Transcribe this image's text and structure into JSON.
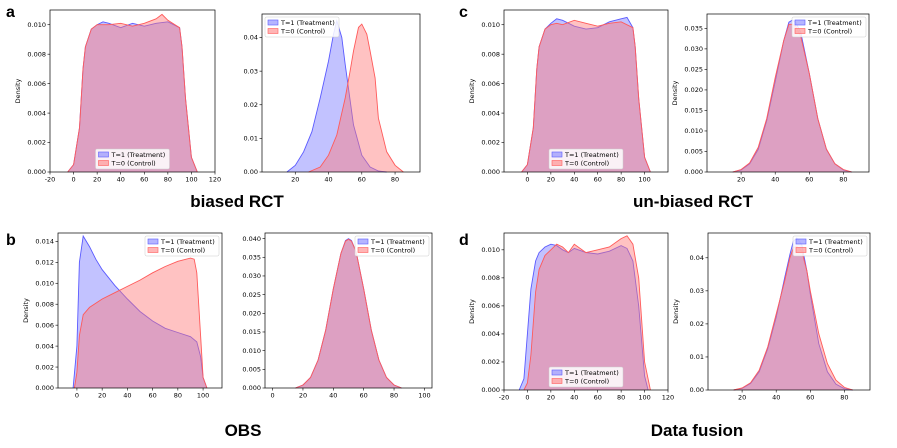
{
  "panels": [
    {
      "letter": "a",
      "title": "biased RCT"
    },
    {
      "letter": "c",
      "title": "un-biased RCT"
    },
    {
      "letter": "b",
      "title": "OBS"
    },
    {
      "letter": "d",
      "title": "Data fusion"
    }
  ],
  "colors": {
    "treatment": "#5a5aff",
    "control": "#ff5a5a",
    "treatment_fill": "#7878ff",
    "control_fill": "#ff7878"
  },
  "chart_data": [
    {
      "id": "a1",
      "panel": "a",
      "type": "area",
      "ylabel": "Density",
      "xlim": [
        -20,
        120
      ],
      "xticks": [
        -20,
        0,
        20,
        40,
        60,
        80,
        100,
        120
      ],
      "ylim": [
        0,
        0.011
      ],
      "yticks": [
        "0.000",
        "0.002",
        "0.004",
        "0.006",
        "0.008",
        "0.010"
      ],
      "legend_position": "bottom-center",
      "series": [
        {
          "name": "T=1 (Treatment)",
          "x": [
            -5,
            0,
            5,
            8,
            10,
            15,
            20,
            25,
            30,
            40,
            50,
            60,
            70,
            80,
            90,
            92,
            95,
            100,
            105
          ],
          "y": [
            0,
            0.0005,
            0.003,
            0.007,
            0.0085,
            0.0097,
            0.01,
            0.0102,
            0.0101,
            0.0098,
            0.0101,
            0.0099,
            0.0101,
            0.0102,
            0.0098,
            0.0085,
            0.005,
            0.001,
            0
          ]
        },
        {
          "name": "T=0 (Control)",
          "x": [
            -5,
            0,
            5,
            8,
            10,
            15,
            20,
            25,
            30,
            40,
            50,
            60,
            70,
            75,
            80,
            90,
            92,
            95,
            100,
            105
          ],
          "y": [
            0,
            0.0005,
            0.003,
            0.007,
            0.0085,
            0.0097,
            0.01,
            0.01,
            0.01,
            0.0101,
            0.0099,
            0.0101,
            0.0104,
            0.0107,
            0.0103,
            0.0098,
            0.0085,
            0.005,
            0.001,
            0
          ]
        }
      ]
    },
    {
      "id": "a2",
      "panel": "a",
      "type": "area",
      "ylabel": "",
      "xlim": [
        0,
        95
      ],
      "xticks": [
        20,
        40,
        60,
        80
      ],
      "ylim": [
        0,
        0.047
      ],
      "yticks": [
        "0.00",
        "0.01",
        "0.02",
        "0.03",
        "0.04"
      ],
      "legend_position": "top-left",
      "series": [
        {
          "name": "T=1 (Treatment)",
          "x": [
            15,
            20,
            25,
            30,
            35,
            40,
            43,
            45,
            48,
            50,
            55,
            60,
            65,
            70,
            75
          ],
          "y": [
            0,
            0.002,
            0.006,
            0.012,
            0.022,
            0.033,
            0.041,
            0.045,
            0.04,
            0.032,
            0.014,
            0.005,
            0.0015,
            0.0003,
            0
          ]
        },
        {
          "name": "T=0 (Control)",
          "x": [
            28,
            35,
            40,
            45,
            50,
            53,
            55,
            58,
            60,
            63,
            65,
            68,
            70,
            75,
            80,
            85
          ],
          "y": [
            0,
            0.0015,
            0.005,
            0.011,
            0.022,
            0.03,
            0.036,
            0.043,
            0.044,
            0.041,
            0.036,
            0.028,
            0.016,
            0.006,
            0.002,
            0
          ]
        }
      ]
    },
    {
      "id": "c1",
      "panel": "c",
      "type": "area",
      "ylabel": "Density",
      "xlim": [
        -20,
        120
      ],
      "xticks": [
        0,
        20,
        40,
        60,
        80,
        100
      ],
      "ylim": [
        0,
        0.011
      ],
      "yticks": [
        "0.000",
        "0.002",
        "0.004",
        "0.006",
        "0.008",
        "0.010"
      ],
      "legend_position": "bottom-center",
      "series": [
        {
          "name": "T=1 (Treatment)",
          "x": [
            -5,
            0,
            5,
            8,
            10,
            15,
            20,
            25,
            30,
            40,
            50,
            60,
            70,
            80,
            85,
            90,
            92,
            95,
            100,
            105
          ],
          "y": [
            0,
            0.0005,
            0.003,
            0.007,
            0.0085,
            0.0097,
            0.0101,
            0.0104,
            0.0103,
            0.0099,
            0.0097,
            0.0098,
            0.0102,
            0.0104,
            0.0105,
            0.0098,
            0.0085,
            0.005,
            0.001,
            0
          ]
        },
        {
          "name": "T=0 (Control)",
          "x": [
            -5,
            0,
            5,
            8,
            10,
            15,
            20,
            25,
            30,
            40,
            50,
            60,
            70,
            80,
            90,
            92,
            95,
            100,
            105
          ],
          "y": [
            0,
            0.0005,
            0.003,
            0.007,
            0.0085,
            0.0097,
            0.01,
            0.0101,
            0.01,
            0.0103,
            0.0101,
            0.0099,
            0.0101,
            0.0102,
            0.0098,
            0.0085,
            0.005,
            0.001,
            0
          ]
        }
      ]
    },
    {
      "id": "c2",
      "panel": "c",
      "type": "area",
      "ylabel": "Density",
      "xlim": [
        0,
        95
      ],
      "xticks": [
        20,
        40,
        60,
        80
      ],
      "ylim": [
        0,
        0.0385
      ],
      "yticks": [
        "0.000",
        "0.005",
        "0.010",
        "0.015",
        "0.020",
        "0.025",
        "0.030",
        "0.035"
      ],
      "legend_position": "top-right",
      "series": [
        {
          "name": "T=1 (Treatment)",
          "x": [
            15,
            20,
            25,
            30,
            35,
            40,
            45,
            48,
            50,
            52,
            55,
            60,
            65,
            70,
            75,
            80,
            85
          ],
          "y": [
            0,
            0.0005,
            0.002,
            0.0055,
            0.0125,
            0.022,
            0.032,
            0.0365,
            0.037,
            0.0365,
            0.034,
            0.024,
            0.013,
            0.0055,
            0.002,
            0.0005,
            0
          ]
        },
        {
          "name": "T=0 (Control)",
          "x": [
            15,
            20,
            25,
            30,
            35,
            40,
            45,
            48,
            50,
            52,
            55,
            60,
            65,
            70,
            75,
            80,
            85
          ],
          "y": [
            0,
            0.0006,
            0.0022,
            0.006,
            0.013,
            0.023,
            0.032,
            0.036,
            0.036,
            0.0355,
            0.033,
            0.024,
            0.013,
            0.0056,
            0.002,
            0.0006,
            0
          ]
        }
      ]
    },
    {
      "id": "b1",
      "panel": "b",
      "type": "area",
      "ylabel": "Density",
      "xlim": [
        -15,
        115
      ],
      "xticks": [
        0,
        20,
        40,
        60,
        80,
        100
      ],
      "ylim": [
        0,
        0.0148
      ],
      "yticks": [
        "0.000",
        "0.002",
        "0.004",
        "0.006",
        "0.008",
        "0.010",
        "0.012",
        "0.014"
      ],
      "legend_position": "top-right",
      "series": [
        {
          "name": "T=1 (Treatment)",
          "x": [
            -3,
            0,
            2,
            5,
            10,
            15,
            20,
            30,
            40,
            50,
            60,
            70,
            80,
            90,
            95,
            98,
            100,
            103
          ],
          "y": [
            0,
            0.004,
            0.012,
            0.0145,
            0.0135,
            0.0123,
            0.0113,
            0.0098,
            0.0085,
            0.0073,
            0.0064,
            0.0057,
            0.0053,
            0.0049,
            0.0044,
            0.003,
            0.001,
            0
          ]
        },
        {
          "name": "T=0 (Control)",
          "x": [
            -2,
            0,
            2,
            5,
            10,
            20,
            30,
            40,
            50,
            60,
            70,
            80,
            90,
            93,
            95,
            98,
            100,
            103
          ],
          "y": [
            0,
            0.0015,
            0.005,
            0.007,
            0.0077,
            0.0085,
            0.0091,
            0.0097,
            0.0103,
            0.011,
            0.0116,
            0.0121,
            0.0124,
            0.0123,
            0.011,
            0.005,
            0.001,
            0
          ]
        }
      ]
    },
    {
      "id": "b2",
      "panel": "b",
      "type": "area",
      "ylabel": "",
      "xlim": [
        -5,
        105
      ],
      "xticks": [
        0,
        20,
        40,
        60,
        80,
        100
      ],
      "ylim": [
        0,
        0.0415
      ],
      "yticks": [
        "0.000",
        "0.005",
        "0.010",
        "0.015",
        "0.020",
        "0.025",
        "0.030",
        "0.035",
        "0.040"
      ],
      "legend_position": "top-right",
      "series": [
        {
          "name": "T=1 (Treatment)",
          "x": [
            15,
            20,
            25,
            30,
            35,
            40,
            45,
            48,
            50,
            52,
            55,
            60,
            65,
            70,
            75,
            80,
            85
          ],
          "y": [
            0,
            0.0008,
            0.0028,
            0.0075,
            0.0155,
            0.0265,
            0.036,
            0.0395,
            0.04,
            0.0395,
            0.0365,
            0.0265,
            0.0155,
            0.0075,
            0.0028,
            0.0008,
            0
          ]
        },
        {
          "name": "T=0 (Control)",
          "x": [
            15,
            20,
            25,
            30,
            35,
            40,
            45,
            48,
            50,
            52,
            55,
            60,
            65,
            70,
            75,
            80,
            85
          ],
          "y": [
            0,
            0.0008,
            0.0028,
            0.0075,
            0.0155,
            0.0265,
            0.036,
            0.0393,
            0.0398,
            0.0393,
            0.0365,
            0.0265,
            0.0155,
            0.0075,
            0.0028,
            0.0008,
            0
          ]
        }
      ]
    },
    {
      "id": "d1",
      "panel": "d",
      "type": "area",
      "ylabel": "Density",
      "xlim": [
        -20,
        120
      ],
      "xticks": [
        -20,
        0,
        20,
        40,
        60,
        80,
        100,
        120
      ],
      "ylim": [
        0,
        0.0112
      ],
      "yticks": [
        "0.000",
        "0.002",
        "0.004",
        "0.006",
        "0.008",
        "0.010"
      ],
      "legend_position": "bottom-center",
      "series": [
        {
          "name": "T=1 (Treatment)",
          "x": [
            -7,
            -3,
            0,
            3,
            7,
            10,
            15,
            20,
            25,
            30,
            35,
            40,
            50,
            60,
            70,
            80,
            85,
            90,
            95,
            100,
            103
          ],
          "y": [
            0,
            0.0008,
            0.004,
            0.0072,
            0.0092,
            0.0098,
            0.0102,
            0.0104,
            0.0103,
            0.01,
            0.0098,
            0.0101,
            0.0098,
            0.0097,
            0.0099,
            0.0103,
            0.0101,
            0.0092,
            0.006,
            0.001,
            0
          ]
        },
        {
          "name": "T=0 (Control)",
          "x": [
            -3,
            0,
            3,
            7,
            10,
            15,
            20,
            25,
            30,
            35,
            40,
            50,
            60,
            70,
            80,
            85,
            90,
            95,
            100,
            105
          ],
          "y": [
            0,
            0.0005,
            0.0025,
            0.007,
            0.0086,
            0.0096,
            0.01,
            0.0104,
            0.0102,
            0.0098,
            0.0104,
            0.0098,
            0.01,
            0.0102,
            0.0108,
            0.011,
            0.0104,
            0.008,
            0.002,
            0
          ]
        }
      ]
    },
    {
      "id": "d2",
      "panel": "d",
      "type": "area",
      "ylabel": "Density",
      "xlim": [
        0,
        95
      ],
      "xticks": [
        20,
        40,
        60,
        80
      ],
      "ylim": [
        0,
        0.0475
      ],
      "yticks": [
        "0.00",
        "0.01",
        "0.02",
        "0.03",
        "0.04"
      ],
      "legend_position": "top-right",
      "series": [
        {
          "name": "T=1 (Treatment)",
          "x": [
            15,
            20,
            25,
            30,
            35,
            40,
            45,
            48,
            50,
            52,
            55,
            58,
            60,
            65,
            70,
            75,
            80,
            85
          ],
          "y": [
            0,
            0.0005,
            0.002,
            0.0055,
            0.0125,
            0.022,
            0.034,
            0.041,
            0.045,
            0.046,
            0.044,
            0.036,
            0.029,
            0.014,
            0.0055,
            0.0018,
            0.0004,
            0
          ]
        },
        {
          "name": "T=0 (Control)",
          "x": [
            15,
            20,
            25,
            30,
            35,
            40,
            45,
            48,
            50,
            52,
            55,
            58,
            60,
            65,
            70,
            75,
            80,
            85
          ],
          "y": [
            0,
            0.0006,
            0.0022,
            0.006,
            0.013,
            0.023,
            0.033,
            0.04,
            0.043,
            0.0435,
            0.042,
            0.036,
            0.03,
            0.017,
            0.008,
            0.003,
            0.0008,
            0
          ]
        }
      ]
    }
  ]
}
